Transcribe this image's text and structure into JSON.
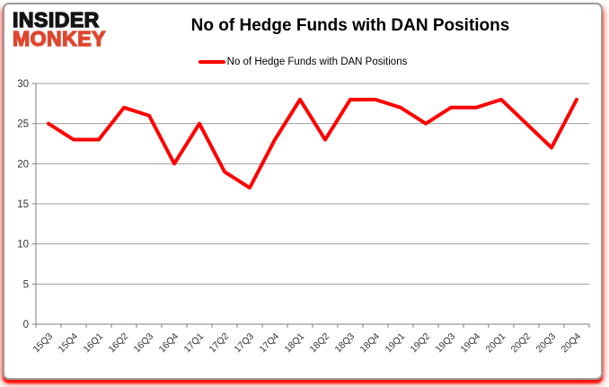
{
  "logo": {
    "line1": "INSIDER",
    "line2": "MONKEY"
  },
  "header": {
    "title": "No of Hedge Funds with DAN Positions"
  },
  "legend": {
    "label": "No of Hedge Funds with DAN Positions",
    "swatch_color": "#ff0000"
  },
  "chart_data": {
    "type": "line",
    "title": "No of Hedge Funds with DAN Positions",
    "categories": [
      "15Q3",
      "15Q4",
      "16Q1",
      "16Q2",
      "16Q3",
      "16Q4",
      "17Q1",
      "17Q2",
      "17Q3",
      "17Q4",
      "18Q1",
      "18Q2",
      "18Q3",
      "18Q4",
      "19Q1",
      "19Q2",
      "19Q3",
      "19Q4",
      "20Q1",
      "20Q2",
      "20Q3",
      "20Q4"
    ],
    "series": [
      {
        "name": "No of Hedge Funds with DAN Positions",
        "color": "#ff0000",
        "values": [
          25,
          23,
          23,
          27,
          26,
          20,
          25,
          19,
          17,
          23,
          28,
          23,
          28,
          28,
          27,
          25,
          27,
          27,
          28,
          25,
          22,
          28
        ]
      }
    ],
    "xlabel": "",
    "ylabel": "",
    "ylim": [
      0,
      30
    ],
    "yticks": [
      0,
      5,
      10,
      15,
      20,
      25,
      30
    ],
    "grid": true,
    "legend_position": "top"
  },
  "colors": {
    "line": "#ff0000",
    "gridline": "#9d9d9d",
    "axis": "#808080",
    "tick_label": "#333333",
    "logo_insider": "#141414",
    "logo_monkey": "#e0472f",
    "border_glow": "#ff0000"
  }
}
